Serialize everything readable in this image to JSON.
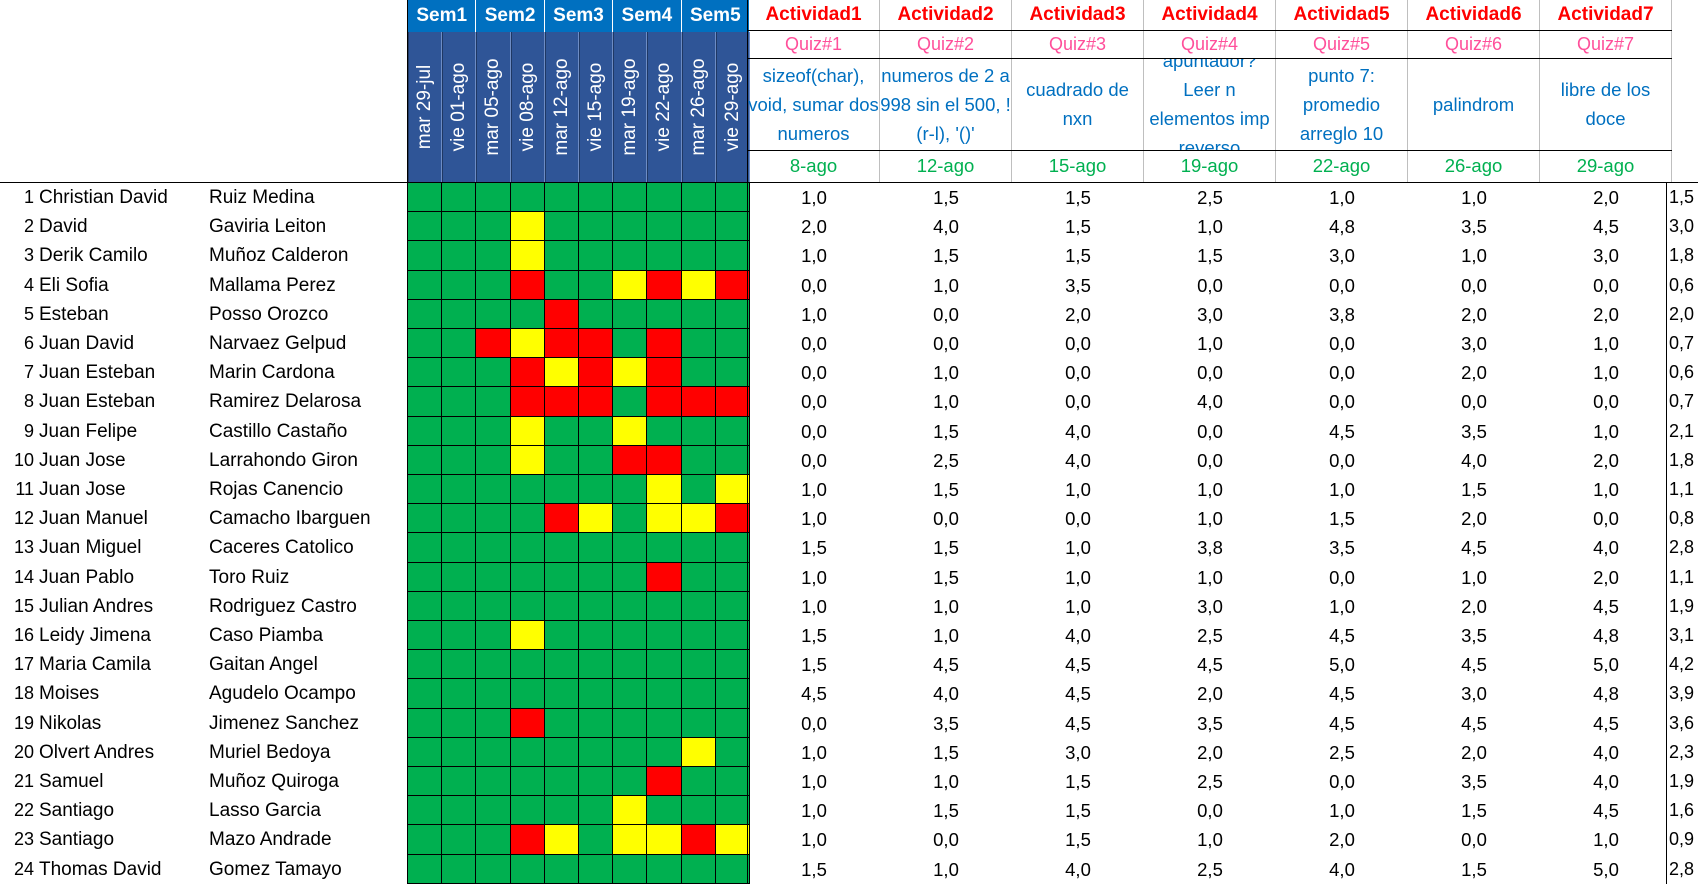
{
  "weeks": [
    "Sem1",
    "Sem2",
    "Sem3",
    "Sem4",
    "Sem5"
  ],
  "dates": [
    "mar 29-jul",
    "vie 01-ago",
    "mar 05-ago",
    "vie 08-ago",
    "mar 12-ago",
    "vie 15-ago",
    "mar 19-ago",
    "vie 22-ago",
    "mar 26-ago",
    "vie 29-ago"
  ],
  "activities": [
    {
      "name": "Actividad1",
      "quiz": "Quiz#1",
      "topic": "sizeof(char), void, sumar dos numeros",
      "due": "8-ago"
    },
    {
      "name": "Actividad2",
      "quiz": "Quiz#2",
      "topic": "numeros de 2 a 998 sin el 500, ! (r-l), '()'",
      "due": "12-ago"
    },
    {
      "name": "Actividad3",
      "quiz": "Quiz#3",
      "topic": "cuadrado de nxn",
      "due": "15-ago"
    },
    {
      "name": "Actividad4",
      "quiz": "Quiz#4",
      "topic": "apuntador? Leer n elementos imp reverso",
      "due": "19-ago"
    },
    {
      "name": "Actividad5",
      "quiz": "Quiz#5",
      "topic": "punto 7: promedio arreglo 10",
      "due": "22-ago"
    },
    {
      "name": "Actividad6",
      "quiz": "Quiz#6",
      "topic": "palindrom",
      "due": "26-ago"
    },
    {
      "name": "Actividad7",
      "quiz": "Quiz#7",
      "topic": "libre de los doce",
      "due": "29-ago"
    }
  ],
  "legend_colors": {
    "G": "#00b050",
    "Y": "#ffff00",
    "R": "#ff0000"
  },
  "students": [
    {
      "n": "1",
      "first": "Christian David",
      "last": "Ruiz Medina",
      "att": "GGGGGGGGGG",
      "scores": [
        "1,0",
        "1,5",
        "1,5",
        "2,5",
        "1,0",
        "1,0",
        "2,0"
      ],
      "avg": "1,5"
    },
    {
      "n": "2",
      "first": "David",
      "last": "Gaviria Leiton",
      "att": "GGGYGGGGGG",
      "scores": [
        "2,0",
        "4,0",
        "1,5",
        "1,0",
        "4,8",
        "3,5",
        "4,5"
      ],
      "avg": "3,0"
    },
    {
      "n": "3",
      "first": "Derik Camilo",
      "last": "Muñoz Calderon",
      "att": "GGGYGGGGGG",
      "scores": [
        "1,0",
        "1,5",
        "1,5",
        "1,5",
        "3,0",
        "1,0",
        "3,0"
      ],
      "avg": "1,8"
    },
    {
      "n": "4",
      "first": "Eli Sofia",
      "last": "Mallama Perez",
      "att": "GGGRGGYRYR",
      "scores": [
        "0,0",
        "1,0",
        "3,5",
        "0,0",
        "0,0",
        "0,0",
        "0,0"
      ],
      "avg": "0,6"
    },
    {
      "n": "5",
      "first": "Esteban",
      "last": "Posso Orozco",
      "att": "GGGGRGGGGG",
      "scores": [
        "1,0",
        "0,0",
        "2,0",
        "3,0",
        "3,8",
        "2,0",
        "2,0"
      ],
      "avg": "2,0"
    },
    {
      "n": "6",
      "first": "Juan David",
      "last": "Narvaez Gelpud",
      "att": "GGRYRRGRGG",
      "scores": [
        "0,0",
        "0,0",
        "0,0",
        "1,0",
        "0,0",
        "3,0",
        "1,0"
      ],
      "avg": "0,7"
    },
    {
      "n": "7",
      "first": "Juan Esteban",
      "last": "Marin Cardona",
      "att": "GGGRYRYRGG",
      "scores": [
        "0,0",
        "1,0",
        "0,0",
        "0,0",
        "0,0",
        "2,0",
        "1,0"
      ],
      "avg": "0,6"
    },
    {
      "n": "8",
      "first": "Juan Esteban",
      "last": "Ramirez Delarosa",
      "att": "GGGRRRGRRR",
      "scores": [
        "0,0",
        "1,0",
        "0,0",
        "4,0",
        "0,0",
        "0,0",
        "0,0"
      ],
      "avg": "0,7"
    },
    {
      "n": "9",
      "first": "Juan Felipe",
      "last": "Castillo Castaño",
      "att": "GGGYGGYGGG",
      "scores": [
        "0,0",
        "1,5",
        "4,0",
        "0,0",
        "4,5",
        "3,5",
        "1,0"
      ],
      "avg": "2,1"
    },
    {
      "n": "10",
      "first": "Juan Jose",
      "last": "Larrahondo Giron",
      "att": "GGGYGGRRGG",
      "scores": [
        "0,0",
        "2,5",
        "4,0",
        "0,0",
        "0,0",
        "4,0",
        "2,0"
      ],
      "avg": "1,8"
    },
    {
      "n": "11",
      "first": "Juan Jose",
      "last": "Rojas Canencio",
      "att": "GGGGGGGYGY",
      "scores": [
        "1,0",
        "1,5",
        "1,0",
        "1,0",
        "1,0",
        "1,5",
        "1,0"
      ],
      "avg": "1,1"
    },
    {
      "n": "12",
      "first": "Juan Manuel",
      "last": "Camacho Ibarguen",
      "att": "GGGGRYGYYR",
      "scores": [
        "1,0",
        "0,0",
        "0,0",
        "1,0",
        "1,5",
        "2,0",
        "0,0"
      ],
      "avg": "0,8"
    },
    {
      "n": "13",
      "first": "Juan Miguel",
      "last": "Caceres Catolico",
      "att": "GGGGGGGGGG",
      "scores": [
        "1,5",
        "1,5",
        "1,0",
        "3,8",
        "3,5",
        "4,5",
        "4,0"
      ],
      "avg": "2,8"
    },
    {
      "n": "14",
      "first": "Juan Pablo",
      "last": "Toro Ruiz",
      "att": "GGGGGGGRGG",
      "scores": [
        "1,0",
        "1,5",
        "1,0",
        "1,0",
        "0,0",
        "1,0",
        "2,0"
      ],
      "avg": "1,1"
    },
    {
      "n": "15",
      "first": "Julian Andres",
      "last": "Rodriguez Castro",
      "att": "GGGGGGGGGG",
      "scores": [
        "1,0",
        "1,0",
        "1,0",
        "3,0",
        "1,0",
        "2,0",
        "4,5"
      ],
      "avg": "1,9"
    },
    {
      "n": "16",
      "first": "Leidy Jimena",
      "last": "Caso Piamba",
      "att": "GGGYGGGGGG",
      "scores": [
        "1,5",
        "1,0",
        "4,0",
        "2,5",
        "4,5",
        "3,5",
        "4,8"
      ],
      "avg": "3,1"
    },
    {
      "n": "17",
      "first": "Maria Camila",
      "last": "Gaitan Angel",
      "att": "GGGGGGGGGG",
      "scores": [
        "1,5",
        "4,5",
        "4,5",
        "4,5",
        "5,0",
        "4,5",
        "5,0"
      ],
      "avg": "4,2"
    },
    {
      "n": "18",
      "first": "Moises",
      "last": "Agudelo Ocampo",
      "att": "GGGGGGGGGG",
      "scores": [
        "4,5",
        "4,0",
        "4,5",
        "2,0",
        "4,5",
        "3,0",
        "4,8"
      ],
      "avg": "3,9"
    },
    {
      "n": "19",
      "first": "Nikolas",
      "last": "Jimenez Sanchez",
      "att": "GGGRGGGGGG",
      "scores": [
        "0,0",
        "3,5",
        "4,5",
        "3,5",
        "4,5",
        "4,5",
        "4,5"
      ],
      "avg": "3,6"
    },
    {
      "n": "20",
      "first": "Olvert Andres",
      "last": "Muriel Bedoya",
      "att": "GGGGGGGGYG",
      "scores": [
        "1,0",
        "1,5",
        "3,0",
        "2,0",
        "2,5",
        "2,0",
        "4,0"
      ],
      "avg": "2,3"
    },
    {
      "n": "21",
      "first": "Samuel",
      "last": "Muñoz Quiroga",
      "att": "GGGGGGGRGG",
      "scores": [
        "1,0",
        "1,0",
        "1,5",
        "2,5",
        "0,0",
        "3,5",
        "4,0"
      ],
      "avg": "1,9"
    },
    {
      "n": "22",
      "first": "Santiago",
      "last": "Lasso Garcia",
      "att": "GGGGGGYGGG",
      "scores": [
        "1,0",
        "1,5",
        "1,5",
        "0,0",
        "1,0",
        "1,5",
        "4,5"
      ],
      "avg": "1,6"
    },
    {
      "n": "23",
      "first": "Santiago",
      "last": "Mazo Andrade",
      "att": "GGGRYGYYRY",
      "scores": [
        "1,0",
        "0,0",
        "1,5",
        "1,0",
        "2,0",
        "0,0",
        "1,0"
      ],
      "avg": "0,9"
    },
    {
      "n": "24",
      "first": "Thomas David",
      "last": "Gomez Tamayo",
      "att": "GGGGGGGGGG",
      "scores": [
        "1,5",
        "1,0",
        "4,0",
        "2,5",
        "4,0",
        "1,5",
        "5,0"
      ],
      "avg": "2,8"
    }
  ]
}
